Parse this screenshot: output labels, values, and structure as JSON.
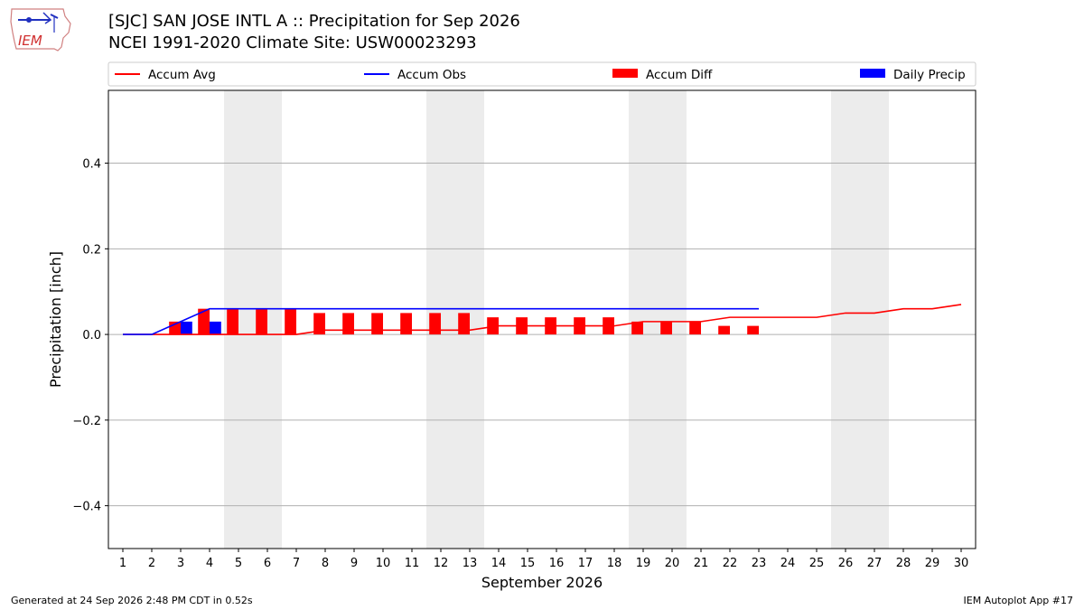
{
  "header": {
    "title_line1": "[SJC] SAN JOSE INTL A :: Precipitation for Sep 2026",
    "title_line2": "NCEI 1991-2020 Climate Site: USW00023293",
    "logo_text": "IEM"
  },
  "footer": {
    "left": "Generated at 24 Sep 2026 2:48 PM CDT in 0.52s",
    "right": "IEM Autoplot App #17"
  },
  "chart_data": {
    "type": "bar",
    "xlabel": "September 2026",
    "ylabel": "Precipitation [inch]",
    "ylim": [
      -0.5,
      0.57
    ],
    "xlim": [
      0.5,
      30.5
    ],
    "yticks": [
      -0.4,
      -0.2,
      0.0,
      0.2,
      0.4
    ],
    "ytick_labels": [
      "−0.4",
      "−0.2",
      "0.0",
      "0.2",
      "0.4"
    ],
    "grid": "horizontal",
    "legend_position": "top",
    "weekend_shading": [
      [
        4.5,
        6.5
      ],
      [
        11.5,
        13.5
      ],
      [
        18.5,
        20.5
      ],
      [
        25.5,
        27.5
      ]
    ],
    "days": [
      1,
      2,
      3,
      4,
      5,
      6,
      7,
      8,
      9,
      10,
      11,
      12,
      13,
      14,
      15,
      16,
      17,
      18,
      19,
      20,
      21,
      22,
      23,
      24,
      25,
      26,
      27,
      28,
      29,
      30
    ],
    "series": [
      {
        "name": "Accum Avg",
        "kind": "line",
        "color": "#ff0000",
        "values": [
          0.0,
          0.0,
          0.0,
          0.0,
          0.0,
          0.0,
          0.0,
          0.01,
          0.01,
          0.01,
          0.01,
          0.01,
          0.01,
          0.02,
          0.02,
          0.02,
          0.02,
          0.02,
          0.03,
          0.03,
          0.03,
          0.04,
          0.04,
          0.04,
          0.04,
          0.05,
          0.05,
          0.06,
          0.06,
          0.07
        ]
      },
      {
        "name": "Accum Obs",
        "kind": "line",
        "color": "#0000ff",
        "values": [
          0.0,
          0.0,
          0.03,
          0.06,
          0.06,
          0.06,
          0.06,
          0.06,
          0.06,
          0.06,
          0.06,
          0.06,
          0.06,
          0.06,
          0.06,
          0.06,
          0.06,
          0.06,
          0.06,
          0.06,
          0.06,
          0.06,
          0.06
        ]
      },
      {
        "name": "Accum Diff",
        "kind": "bar",
        "color": "#ff0000",
        "values": [
          0.0,
          0.0,
          0.03,
          0.06,
          0.06,
          0.06,
          0.06,
          0.05,
          0.05,
          0.05,
          0.05,
          0.05,
          0.05,
          0.04,
          0.04,
          0.04,
          0.04,
          0.04,
          0.03,
          0.03,
          0.03,
          0.02,
          0.02
        ]
      },
      {
        "name": "Daily Precip",
        "kind": "bar",
        "color": "#0000ff",
        "values": [
          0.0,
          0.0,
          0.03,
          0.03,
          0.0,
          0.0,
          0.0,
          0.0,
          0.0,
          0.0,
          0.0,
          0.0,
          0.0,
          0.0,
          0.0,
          0.0,
          0.0,
          0.0,
          0.0,
          0.0,
          0.0,
          0.0,
          0.0
        ]
      }
    ]
  }
}
